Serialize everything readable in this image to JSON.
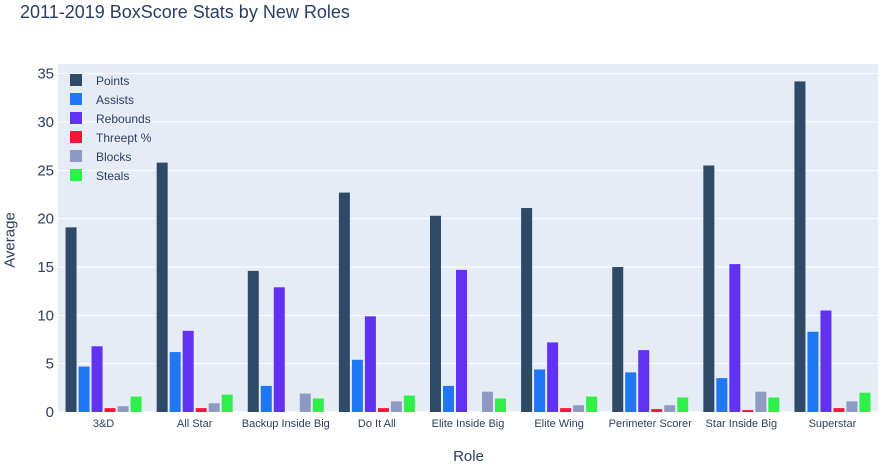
{
  "chart_data": {
    "type": "bar",
    "title": "2011-2019 BoxScore Stats by New Roles",
    "xlabel": "Role",
    "ylabel": "Average",
    "ylim": [
      0,
      36
    ],
    "yticks": [
      0,
      5,
      10,
      15,
      20,
      25,
      30,
      35
    ],
    "grid": true,
    "legend_position": "top-left",
    "categories": [
      "3&D",
      "All Star",
      "Backup Inside Big",
      "Do It All",
      "Elite Inside Big",
      "Elite Wing",
      "Perimeter Scorer",
      "Star Inside Big",
      "Superstar"
    ],
    "series": [
      {
        "name": "Points",
        "color": "#2e4a66",
        "values": [
          19.1,
          25.8,
          14.6,
          22.7,
          20.3,
          21.1,
          15.0,
          25.5,
          34.2
        ]
      },
      {
        "name": "Assists",
        "color": "#1f77f4",
        "values": [
          4.7,
          6.2,
          2.7,
          5.4,
          2.7,
          4.4,
          4.1,
          3.5,
          8.3
        ]
      },
      {
        "name": "Rebounds",
        "color": "#6232f2",
        "values": [
          6.8,
          8.4,
          12.9,
          9.9,
          14.7,
          7.2,
          6.4,
          15.3,
          10.5
        ]
      },
      {
        "name": "Threept %",
        "color": "#fa1439",
        "values": [
          0.4,
          0.4,
          0.0,
          0.4,
          0.0,
          0.4,
          0.3,
          0.2,
          0.4
        ]
      },
      {
        "name": "Blocks",
        "color": "#8f9ac4",
        "values": [
          0.6,
          0.9,
          1.9,
          1.1,
          2.1,
          0.7,
          0.7,
          2.1,
          1.1
        ]
      },
      {
        "name": "Steals",
        "color": "#2ff049",
        "values": [
          1.6,
          1.8,
          1.4,
          1.7,
          1.4,
          1.6,
          1.5,
          1.5,
          2.0
        ]
      }
    ]
  }
}
